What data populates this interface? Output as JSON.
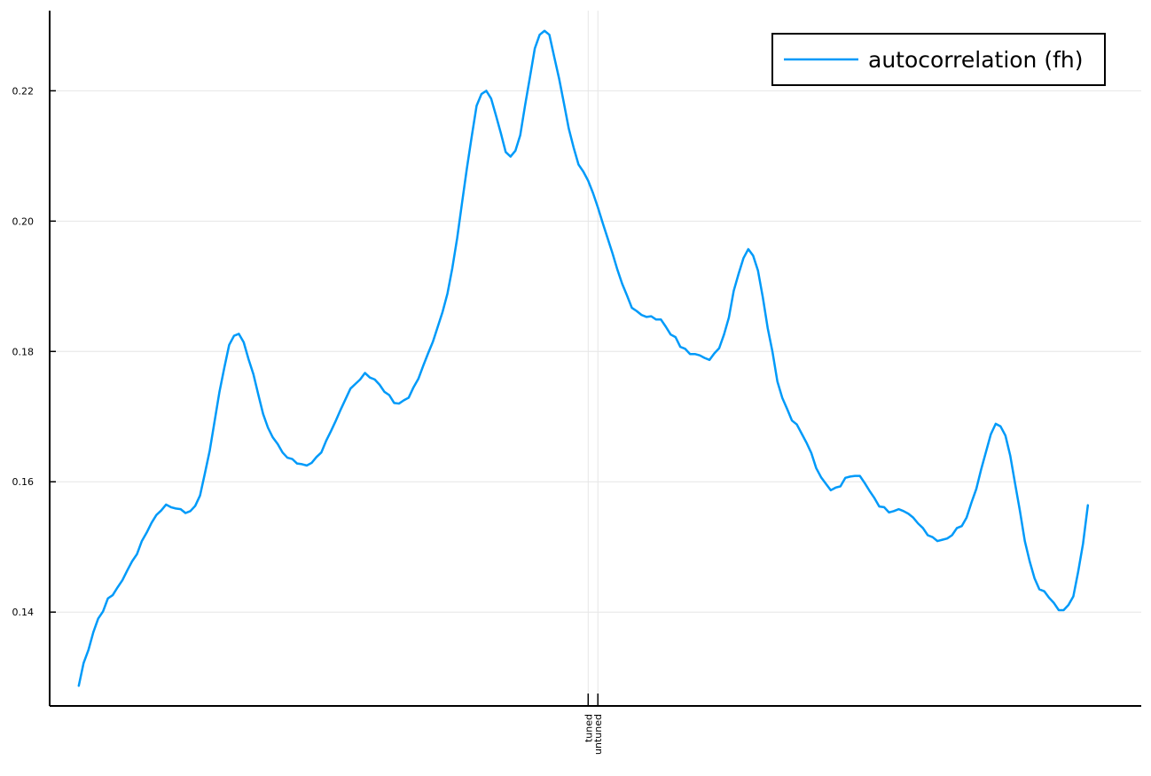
{
  "chart_data": {
    "type": "line",
    "title": "",
    "xlabel": "",
    "ylabel": "",
    "xlim": [
      -6,
      219
    ],
    "ylim": [
      0.1256,
      0.2323
    ],
    "yticks": [
      0.14,
      0.16,
      0.18,
      0.2,
      0.22
    ],
    "ytick_labels": [
      "0.14",
      "0.16",
      "0.18",
      "0.20",
      "0.22"
    ],
    "xticks": [
      {
        "x": 105,
        "label": "tuned"
      },
      {
        "x": 107,
        "label": "untuned"
      }
    ],
    "grid": true,
    "legend_position": "top-right",
    "colors": {
      "series": "#009af9",
      "axis": "#000000",
      "grid": "#e6e6e6"
    },
    "series": [
      {
        "name": "autocorrelation (fh)",
        "color": "#009af9",
        "values": [
          0.1287,
          0.1322,
          0.1342,
          0.1369,
          0.139,
          0.1401,
          0.1421,
          0.1426,
          0.1438,
          0.1449,
          0.1464,
          0.1478,
          0.1489,
          0.1509,
          0.1522,
          0.1537,
          0.1549,
          0.1556,
          0.1565,
          0.1561,
          0.1559,
          0.1558,
          0.1552,
          0.1555,
          0.1563,
          0.1579,
          0.1613,
          0.1648,
          0.1693,
          0.1738,
          0.1775,
          0.181,
          0.1824,
          0.1827,
          0.1814,
          0.1788,
          0.1765,
          0.1734,
          0.1704,
          0.1683,
          0.1668,
          0.1658,
          0.1645,
          0.1637,
          0.1635,
          0.1628,
          0.1627,
          0.1625,
          0.1629,
          0.1638,
          0.1645,
          0.1663,
          0.1678,
          0.1694,
          0.1711,
          0.1727,
          0.1743,
          0.175,
          0.1757,
          0.1767,
          0.176,
          0.1757,
          0.1749,
          0.1738,
          0.1733,
          0.1721,
          0.172,
          0.1725,
          0.1729,
          0.1745,
          0.1758,
          0.1778,
          0.1797,
          0.1815,
          0.1838,
          0.1861,
          0.1889,
          0.1928,
          0.1974,
          0.2028,
          0.2081,
          0.213,
          0.2177,
          0.2195,
          0.22,
          0.2188,
          0.2162,
          0.2135,
          0.2106,
          0.2099,
          0.2108,
          0.2132,
          0.2178,
          0.2221,
          0.2265,
          0.2286,
          0.2292,
          0.2286,
          0.2252,
          0.2219,
          0.2181,
          0.2142,
          0.2113,
          0.2087,
          0.2076,
          0.2062,
          0.2043,
          0.2021,
          0.1997,
          0.1974,
          0.1951,
          0.1926,
          0.1904,
          0.1886,
          0.1867,
          0.1862,
          0.1856,
          0.1853,
          0.1854,
          0.1849,
          0.1849,
          0.1838,
          0.1826,
          0.1822,
          0.1807,
          0.1804,
          0.1796,
          0.1796,
          0.1794,
          0.179,
          0.1787,
          0.1797,
          0.1805,
          0.1826,
          0.1852,
          0.1893,
          0.1919,
          0.1943,
          0.1957,
          0.1947,
          0.1924,
          0.1883,
          0.1836,
          0.1799,
          0.1754,
          0.1729,
          0.1712,
          0.1694,
          0.1688,
          0.1674,
          0.166,
          0.1644,
          0.1621,
          0.1607,
          0.1597,
          0.1587,
          0.1591,
          0.1593,
          0.1606,
          0.1608,
          0.1609,
          0.1609,
          0.1598,
          0.1586,
          0.1575,
          0.1562,
          0.1561,
          0.1553,
          0.1555,
          0.1558,
          0.1555,
          0.1551,
          0.1545,
          0.1536,
          0.1529,
          0.1518,
          0.1515,
          0.1509,
          0.1511,
          0.1513,
          0.1518,
          0.1529,
          0.1532,
          0.1545,
          0.1568,
          0.1589,
          0.1619,
          0.1646,
          0.1673,
          0.1689,
          0.1685,
          0.1671,
          0.164,
          0.1597,
          0.1555,
          0.1509,
          0.1478,
          0.1452,
          0.1435,
          0.1432,
          0.1422,
          0.1414,
          0.1403,
          0.1403,
          0.1411,
          0.1424,
          0.1462,
          0.1505,
          0.1564
        ]
      }
    ]
  }
}
